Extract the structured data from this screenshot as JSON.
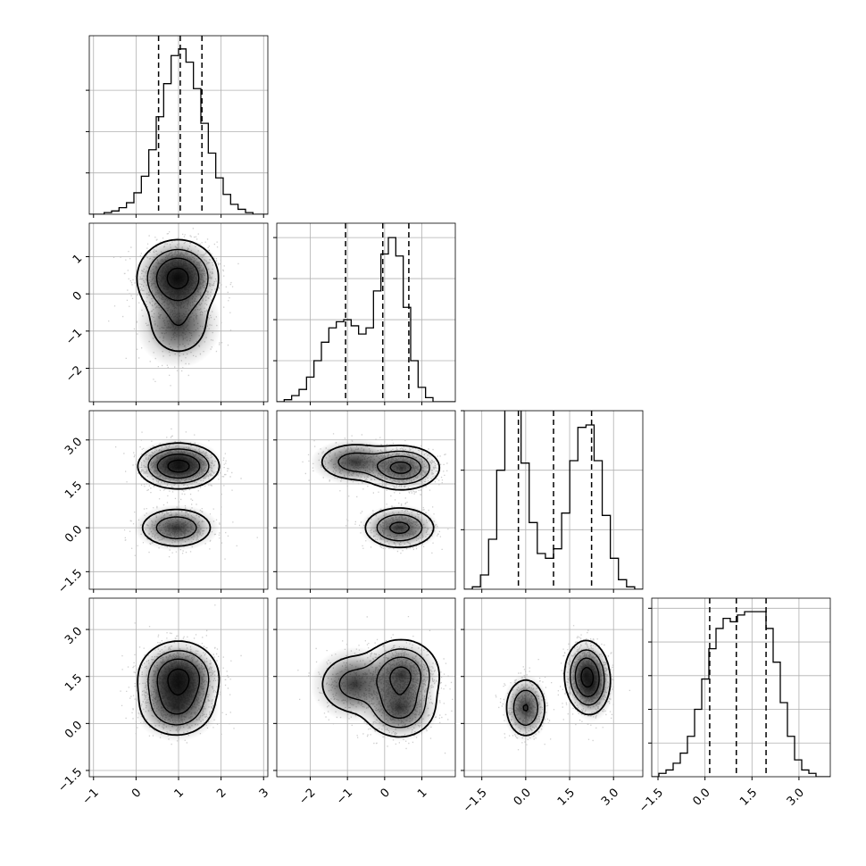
{
  "chart_data": {
    "type": "corner",
    "parameters": 4,
    "ranges": [
      [
        -1.1,
        3.1
      ],
      [
        -2.9,
        1.9
      ],
      [
        -2.1,
        4.0
      ],
      [
        -1.7,
        4.0
      ]
    ],
    "ticks": [
      [
        -1,
        0,
        1,
        2,
        3
      ],
      [
        -2,
        -1,
        0,
        1
      ],
      [
        -1.5,
        0.0,
        1.5,
        3.0
      ],
      [
        -1.5,
        0.0,
        1.5,
        3.0
      ]
    ],
    "tick_labels": [
      [
        "−1",
        "0",
        "1",
        "2",
        "3"
      ],
      [
        "−2",
        "−1",
        "0",
        "1"
      ],
      [
        "−1.5",
        "0.0",
        "1.5",
        "3.0"
      ],
      [
        "−1.5",
        "0.0",
        "1.5",
        "3.0"
      ]
    ],
    "quantiles": [
      [
        0.53,
        1.04,
        1.55
      ],
      [
        -1.05,
        -0.05,
        0.65
      ],
      [
        -0.25,
        0.95,
        2.25
      ],
      [
        0.15,
        1.0,
        1.95
      ]
    ],
    "histograms": [
      [
        0.0,
        0.0,
        0.01,
        0.02,
        0.04,
        0.07,
        0.13,
        0.23,
        0.39,
        0.59,
        0.79,
        0.96,
        1.0,
        0.92,
        0.76,
        0.55,
        0.37,
        0.22,
        0.12,
        0.06,
        0.03,
        0.01,
        0.0,
        0.0
      ],
      [
        0.0,
        0.01,
        0.03,
        0.06,
        0.12,
        0.2,
        0.29,
        0.36,
        0.39,
        0.4,
        0.37,
        0.33,
        0.36,
        0.54,
        0.72,
        0.8,
        0.71,
        0.46,
        0.2,
        0.07,
        0.02,
        0.0,
        0.0,
        0.0
      ],
      [
        0.0,
        0.01,
        0.06,
        0.21,
        0.5,
        0.76,
        0.77,
        0.53,
        0.28,
        0.15,
        0.13,
        0.17,
        0.32,
        0.54,
        0.68,
        0.69,
        0.54,
        0.31,
        0.13,
        0.04,
        0.01,
        0.0
      ],
      [
        0.0,
        0.01,
        0.02,
        0.04,
        0.07,
        0.12,
        0.2,
        0.29,
        0.38,
        0.44,
        0.47,
        0.46,
        0.48,
        0.49,
        0.49,
        0.49,
        0.44,
        0.34,
        0.22,
        0.12,
        0.05,
        0.02,
        0.01,
        0.0,
        0.0
      ]
    ],
    "hist_ticks": [
      [
        0.25,
        0.5,
        0.75
      ],
      [
        0.2,
        0.4,
        0.6,
        0.8
      ],
      [
        0.25,
        0.5,
        0.75
      ],
      [
        0.1,
        0.2,
        0.3,
        0.4,
        0.5
      ]
    ],
    "hist_ylim": [
      1.08,
      0.87,
      0.75,
      0.53
    ],
    "components": [
      {
        "mean": [
          1.0,
          0.45,
          2.05,
          1.55
        ],
        "sd": [
          0.42,
          0.45,
          0.33,
          0.5
        ],
        "weight": 0.5
      },
      {
        "mean": [
          1.0,
          -0.8,
          2.25,
          1.25
        ],
        "sd": [
          0.42,
          0.5,
          0.33,
          0.5
        ],
        "weight": 0.2
      },
      {
        "mean": [
          0.95,
          0.4,
          0.0,
          0.5
        ],
        "sd": [
          0.42,
          0.45,
          0.33,
          0.45
        ],
        "weight": 0.3
      }
    ],
    "xlabel": "",
    "ylabel": ""
  }
}
